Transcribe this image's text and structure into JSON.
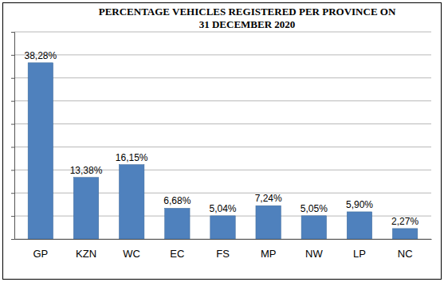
{
  "chart_data": {
    "type": "bar",
    "title": [
      "PERCENTAGE VEHICLES REGISTERED PER PROVINCE ON",
      "31 DECEMBER 2020"
    ],
    "categories": [
      "GP",
      "KZN",
      "WC",
      "EC",
      "FS",
      "MP",
      "NW",
      "LP",
      "NC"
    ],
    "values": [
      38.28,
      13.38,
      16.15,
      6.68,
      5.04,
      7.24,
      5.05,
      5.9,
      2.27
    ],
    "value_labels": [
      "38,28%",
      "13,38%",
      "16,15%",
      "6,68%",
      "5,04%",
      "7,24%",
      "5,05%",
      "5,90%",
      "2,27%"
    ],
    "color": "#4f81bd",
    "ylim": [
      0,
      45
    ],
    "yticks": [
      0,
      5,
      10,
      15,
      20,
      25,
      30,
      35,
      40,
      45
    ],
    "grid": true,
    "data_labels": true,
    "tick_labels": "x"
  }
}
